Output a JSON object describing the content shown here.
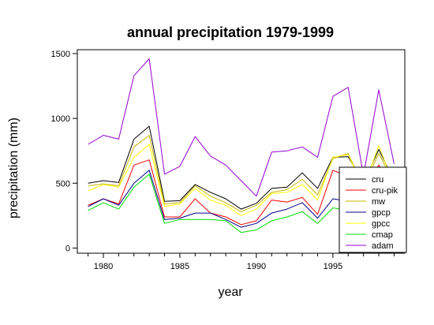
{
  "chart_data": {
    "type": "line",
    "title": "annual precipitation 1979-1999",
    "xlabel": "year",
    "ylabel": "precipitation (mm)",
    "xlim": [
      1978.3,
      1999.7
    ],
    "ylim": [
      -40,
      1530
    ],
    "xticks": [
      1980,
      1985,
      1990,
      1995
    ],
    "yticks": [
      0,
      500,
      1000,
      1500
    ],
    "grid": false,
    "legend_position": "bottom-right",
    "x": [
      1979,
      1980,
      1981,
      1982,
      1983,
      1984,
      1985,
      1986,
      1987,
      1988,
      1989,
      1990,
      1991,
      1992,
      1993,
      1994,
      1995,
      1996,
      1997,
      1998,
      1999
    ],
    "series": [
      {
        "name": "cru",
        "color": "#000000",
        "values": [
          500,
          520,
          505,
          840,
          940,
          360,
          365,
          490,
          430,
          380,
          300,
          345,
          460,
          470,
          580,
          460,
          700,
          705,
          500,
          760,
          520
        ]
      },
      {
        "name": "cru-pik",
        "color": "#ff0000",
        "values": [
          330,
          380,
          340,
          640,
          680,
          240,
          240,
          380,
          270,
          240,
          180,
          210,
          370,
          355,
          390,
          260,
          600,
          550,
          480,
          640,
          470
        ]
      },
      {
        "name": "mw",
        "color": "#c8b400",
        "values": [
          480,
          495,
          480,
          780,
          870,
          340,
          350,
          480,
          400,
          350,
          280,
          330,
          430,
          450,
          530,
          410,
          690,
          730,
          470,
          730,
          500
        ]
      },
      {
        "name": "gpcp",
        "color": "#00008b",
        "values": [
          320,
          380,
          330,
          500,
          600,
          220,
          230,
          270,
          270,
          220,
          160,
          190,
          270,
          300,
          350,
          230,
          380,
          360,
          330,
          440,
          350
        ]
      },
      {
        "name": "gpcc",
        "color": "#ffff00",
        "values": [
          440,
          490,
          470,
          700,
          800,
          320,
          340,
          460,
          370,
          330,
          250,
          300,
          420,
          430,
          490,
          370,
          700,
          720,
          460,
          790,
          480
        ]
      },
      {
        "name": "cmap",
        "color": "#00dd00",
        "values": [
          290,
          350,
          300,
          470,
          570,
          190,
          220,
          220,
          220,
          210,
          120,
          140,
          210,
          240,
          280,
          190,
          310,
          290,
          250,
          380,
          280
        ]
      },
      {
        "name": "adam",
        "color": "#9400d3",
        "values": [
          800,
          870,
          840,
          1330,
          1460,
          570,
          630,
          860,
          710,
          640,
          520,
          400,
          740,
          750,
          780,
          700,
          1170,
          1240,
          560,
          1220,
          650
        ]
      }
    ]
  }
}
